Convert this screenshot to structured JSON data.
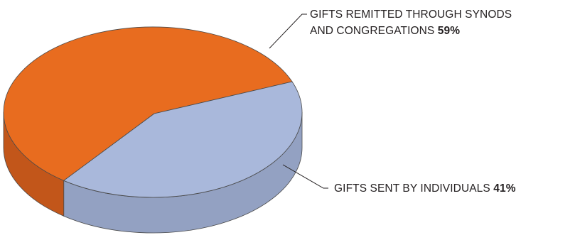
{
  "chart_data": {
    "type": "pie",
    "title": "",
    "slices": [
      {
        "label_lines": [
          "GIFTS REMITTED THROUGH SYNODS",
          "AND CONGREGATIONS"
        ],
        "value": 59,
        "value_label": "59%",
        "color": "#E86C1F",
        "side_color": "#C2561A"
      },
      {
        "label_lines": [
          "GIFTS SENT BY INDIVIDUALS"
        ],
        "value": 41,
        "value_label": "41%",
        "color": "#A9B8DB",
        "side_color": "#93A1C2"
      }
    ],
    "legend": "none",
    "style": "3d-pie"
  }
}
